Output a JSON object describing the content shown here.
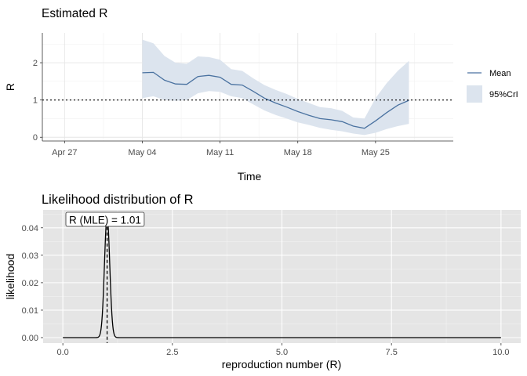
{
  "chart_data": [
    {
      "type": "line",
      "title": "Estimated R",
      "xlabel": "Time",
      "ylabel": "R",
      "x_ticks": [
        "Apr 27",
        "May 04",
        "May 11",
        "May 18",
        "May 25"
      ],
      "y_ticks": [
        "0",
        "1",
        "2"
      ],
      "xlim": [
        "2020-04-25",
        "2020-06-01"
      ],
      "ylim": [
        -0.1,
        2.8
      ],
      "reference_line": 1,
      "legend": {
        "placement": "right",
        "entries": [
          "Mean",
          "95%CrI"
        ]
      },
      "colors": {
        "mean": "#4a72a0",
        "ribbon": "#dce4ee",
        "panel": "#ffffff",
        "grid": "#ebebeb"
      },
      "series": [
        {
          "name": "Mean",
          "x": [
            "2020-05-04",
            "2020-05-05",
            "2020-05-06",
            "2020-05-07",
            "2020-05-08",
            "2020-05-09",
            "2020-05-10",
            "2020-05-11",
            "2020-05-12",
            "2020-05-13",
            "2020-05-14",
            "2020-05-15",
            "2020-05-16",
            "2020-05-17",
            "2020-05-18",
            "2020-05-19",
            "2020-05-20",
            "2020-05-21",
            "2020-05-22",
            "2020-05-23",
            "2020-05-24",
            "2020-05-25",
            "2020-05-26",
            "2020-05-27",
            "2020-05-28",
            "2020-05-29"
          ],
          "y": [
            1.73,
            1.74,
            1.53,
            1.43,
            1.42,
            1.63,
            1.66,
            1.61,
            1.42,
            1.4,
            1.23,
            1.05,
            0.92,
            0.81,
            0.69,
            0.59,
            0.5,
            0.47,
            0.42,
            0.3,
            0.24,
            0.44,
            0.66,
            0.86,
            0.99,
            null
          ],
          "lower": [
            1.05,
            1.1,
            1.0,
            0.98,
            1.0,
            1.18,
            1.24,
            1.22,
            1.1,
            1.05,
            0.88,
            0.72,
            0.6,
            0.5,
            0.4,
            0.33,
            0.25,
            0.2,
            0.16,
            0.1,
            0.06,
            0.12,
            0.22,
            0.3,
            0.36,
            null
          ],
          "upper": [
            2.62,
            2.52,
            2.18,
            2.0,
            1.97,
            2.17,
            2.15,
            2.08,
            1.83,
            1.78,
            1.58,
            1.4,
            1.27,
            1.16,
            1.03,
            0.92,
            0.81,
            0.78,
            0.71,
            0.53,
            0.5,
            1.05,
            1.45,
            1.78,
            2.05,
            null
          ]
        }
      ]
    },
    {
      "type": "line",
      "title": "Likelihood distribution of R",
      "xlabel": "reproduction number (R)",
      "ylabel": "likelihood",
      "x_ticks": [
        "0.0",
        "2.5",
        "5.0",
        "7.5",
        "10.0"
      ],
      "y_ticks": [
        "0.00",
        "0.01",
        "0.02",
        "0.03",
        "0.04"
      ],
      "xlim": [
        -0.45,
        10.45
      ],
      "ylim": [
        -0.002,
        0.0465
      ],
      "peak": {
        "x": 1.01,
        "y": 0.0443,
        "sd": 0.06
      },
      "x_range": [
        0,
        10
      ],
      "annotation": "R (MLE) = 1.01",
      "mle": 1.01,
      "colors": {
        "line": "#000000",
        "panel": "#e5e5e5",
        "grid": "#ffffff"
      }
    }
  ]
}
